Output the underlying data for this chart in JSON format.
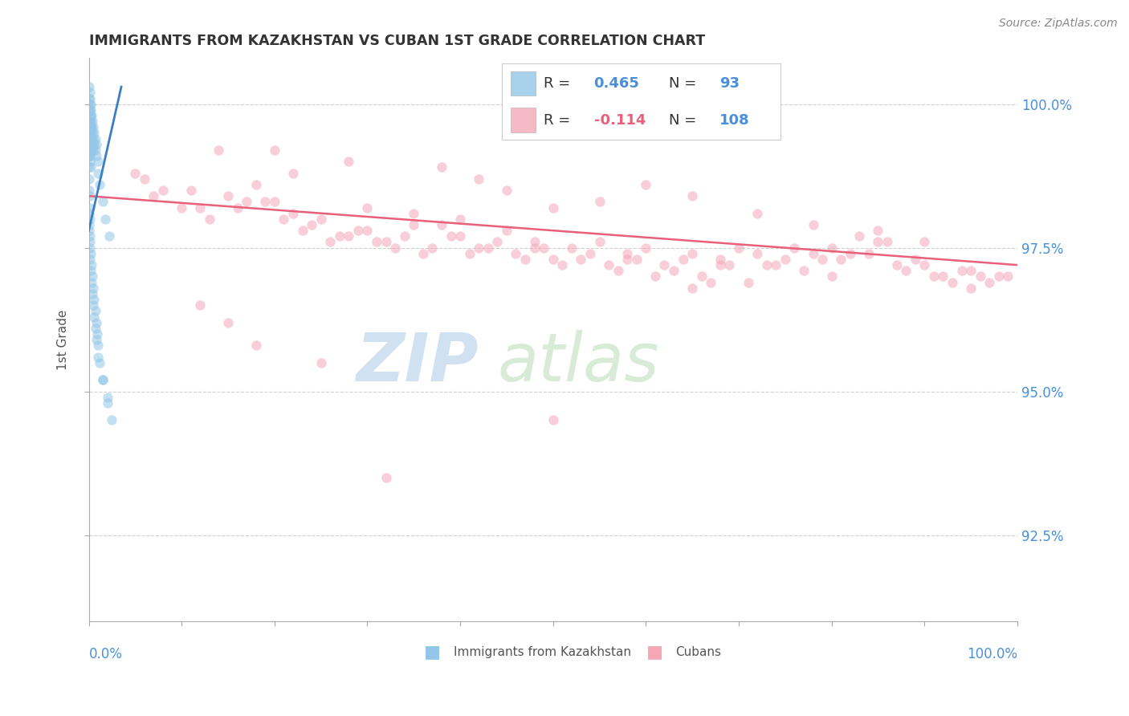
{
  "title": "IMMIGRANTS FROM KAZAKHSTAN VS CUBAN 1ST GRADE CORRELATION CHART",
  "source_text": "Source: ZipAtlas.com",
  "ylabel_label": "1st Grade",
  "kaz_color": "#93c6e8",
  "cuban_color": "#f4a8b8",
  "kaz_trend_color": "#3a7fc1",
  "cuban_trend_color": "#e8607a",
  "kaz_R": "0.465",
  "kaz_N": "93",
  "cuban_R": "-0.114",
  "cuban_N": "108",
  "background_color": "#ffffff",
  "grid_color": "#cccccc",
  "title_color": "#333333",
  "axis_label_color": "#4a90d9",
  "xmin": 0.0,
  "xmax": 100.0,
  "ymin": 91.0,
  "ymax": 100.8,
  "right_yticks": [
    92.5,
    95.0,
    97.5,
    100.0
  ],
  "scatter_alpha": 0.55,
  "scatter_size": 80,
  "kaz_scatter_x": [
    0.05,
    0.05,
    0.05,
    0.05,
    0.05,
    0.05,
    0.05,
    0.05,
    0.1,
    0.1,
    0.1,
    0.1,
    0.1,
    0.1,
    0.1,
    0.15,
    0.15,
    0.15,
    0.15,
    0.15,
    0.15,
    0.2,
    0.2,
    0.2,
    0.2,
    0.2,
    0.25,
    0.25,
    0.25,
    0.25,
    0.3,
    0.3,
    0.3,
    0.3,
    0.4,
    0.4,
    0.4,
    0.5,
    0.5,
    0.5,
    0.6,
    0.6,
    0.7,
    0.7,
    0.8,
    0.8,
    1.0,
    1.0,
    1.2,
    1.5,
    1.8,
    2.2,
    0.05,
    0.05,
    0.1,
    0.1,
    0.15,
    0.05,
    0.1,
    0.2,
    0.3,
    0.4,
    0.5,
    0.6,
    0.7,
    0.8,
    0.9,
    1.0,
    1.2,
    1.5,
    2.0,
    2.5,
    0.05,
    0.05,
    0.1,
    0.1,
    0.15,
    0.2,
    0.3,
    0.4,
    0.5,
    0.6,
    0.7,
    0.8,
    1.0,
    1.5,
    2.0,
    0.05,
    0.1,
    0.15,
    0.2
  ],
  "kaz_scatter_y": [
    100.3,
    100.1,
    99.9,
    99.7,
    99.5,
    99.3,
    99.1,
    98.9,
    100.2,
    100.0,
    99.8,
    99.6,
    99.4,
    99.2,
    99.0,
    100.1,
    99.9,
    99.7,
    99.5,
    99.3,
    99.1,
    100.0,
    99.8,
    99.6,
    99.4,
    99.2,
    99.9,
    99.7,
    99.5,
    99.3,
    99.8,
    99.6,
    99.4,
    99.2,
    99.7,
    99.5,
    99.3,
    99.6,
    99.4,
    99.2,
    99.5,
    99.3,
    99.4,
    99.2,
    99.3,
    99.1,
    99.0,
    98.8,
    98.6,
    98.3,
    98.0,
    97.7,
    98.7,
    98.5,
    98.4,
    98.2,
    98.0,
    97.8,
    97.6,
    97.4,
    97.2,
    97.0,
    96.8,
    96.6,
    96.4,
    96.2,
    96.0,
    95.8,
    95.5,
    95.2,
    94.8,
    94.5,
    98.1,
    97.9,
    97.7,
    97.5,
    97.3,
    97.1,
    96.9,
    96.7,
    96.5,
    96.3,
    96.1,
    95.9,
    95.6,
    95.2,
    94.9,
    99.5,
    99.3,
    99.1,
    98.9
  ],
  "cuban_scatter_x": [
    5.0,
    8.0,
    12.0,
    18.0,
    20.0,
    25.0,
    30.0,
    35.0,
    38.0,
    40.0,
    45.0,
    48.0,
    52.0,
    55.0,
    58.0,
    60.0,
    65.0,
    68.0,
    70.0,
    72.0,
    75.0,
    78.0,
    80.0,
    82.0,
    85.0,
    90.0,
    95.0,
    98.0,
    7.0,
    10.0,
    15.0,
    22.0,
    28.0,
    32.0,
    42.0,
    50.0,
    62.0,
    88.0,
    92.0,
    6.0,
    11.0,
    17.0,
    24.0,
    29.0,
    34.0,
    39.0,
    44.0,
    49.0,
    54.0,
    59.0,
    64.0,
    69.0,
    74.0,
    79.0,
    84.0,
    89.0,
    94.0,
    99.0,
    13.0,
    16.0,
    23.0,
    26.0,
    33.0,
    36.0,
    43.0,
    46.0,
    53.0,
    56.0,
    63.0,
    66.0,
    73.0,
    76.0,
    83.0,
    86.0,
    93.0,
    96.0,
    19.0,
    21.0,
    27.0,
    31.0,
    37.0,
    41.0,
    47.0,
    51.0,
    57.0,
    61.0,
    67.0,
    71.0,
    77.0,
    81.0,
    87.0,
    91.0,
    97.0,
    14.0,
    50.0,
    65.0
  ],
  "cuban_scatter_y": [
    98.8,
    98.5,
    98.2,
    98.6,
    98.3,
    98.0,
    98.2,
    98.1,
    97.9,
    98.0,
    97.8,
    97.6,
    97.5,
    97.6,
    97.4,
    97.5,
    97.4,
    97.3,
    97.5,
    97.4,
    97.3,
    97.4,
    97.5,
    97.4,
    97.6,
    97.2,
    97.1,
    97.0,
    98.4,
    98.2,
    98.4,
    98.1,
    97.7,
    97.6,
    97.5,
    97.3,
    97.2,
    97.1,
    97.0,
    98.7,
    98.5,
    98.3,
    97.9,
    97.8,
    97.7,
    97.7,
    97.6,
    97.5,
    97.4,
    97.3,
    97.3,
    97.2,
    97.2,
    97.3,
    97.4,
    97.3,
    97.1,
    97.0,
    98.0,
    98.2,
    97.8,
    97.6,
    97.5,
    97.4,
    97.5,
    97.4,
    97.3,
    97.2,
    97.1,
    97.0,
    97.2,
    97.5,
    97.7,
    97.6,
    96.9,
    97.0,
    98.3,
    98.0,
    97.7,
    97.6,
    97.5,
    97.4,
    97.3,
    97.2,
    97.1,
    97.0,
    96.9,
    96.9,
    97.1,
    97.3,
    97.2,
    97.0,
    96.9,
    99.2,
    94.5,
    96.8
  ],
  "cuban_outlier_x": [
    20.0,
    28.0,
    22.0,
    45.0,
    55.0,
    60.0,
    38.0,
    42.0,
    50.0,
    65.0,
    72.0,
    78.0,
    85.0,
    90.0,
    30.0,
    35.0,
    40.0,
    48.0,
    58.0,
    68.0,
    80.0,
    95.0,
    12.0,
    15.0,
    18.0,
    25.0,
    32.0
  ],
  "cuban_outlier_y": [
    99.2,
    99.0,
    98.8,
    98.5,
    98.3,
    98.6,
    98.9,
    98.7,
    98.2,
    98.4,
    98.1,
    97.9,
    97.8,
    97.6,
    97.8,
    97.9,
    97.7,
    97.5,
    97.3,
    97.2,
    97.0,
    96.8,
    96.5,
    96.2,
    95.8,
    95.5,
    93.5
  ],
  "kaz_trendline_x": [
    0.0,
    3.5
  ],
  "kaz_trendline_y": [
    97.8,
    100.3
  ],
  "cuban_trendline_x": [
    0.0,
    100.0
  ],
  "cuban_trendline_y": [
    98.4,
    97.2
  ]
}
